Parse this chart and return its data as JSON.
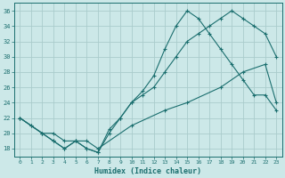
{
  "xlabel": "Humidex (Indice chaleur)",
  "bg_color": "#cce8e8",
  "grid_color": "#aacccc",
  "line_color": "#1a6e6e",
  "xlim": [
    -0.5,
    23.5
  ],
  "ylim": [
    17,
    37
  ],
  "xticks": [
    0,
    1,
    2,
    3,
    4,
    5,
    6,
    7,
    8,
    9,
    10,
    11,
    12,
    13,
    14,
    15,
    16,
    17,
    18,
    19,
    20,
    21,
    22,
    23
  ],
  "yticks": [
    18,
    20,
    22,
    24,
    26,
    28,
    30,
    32,
    34,
    36
  ],
  "line1_x": [
    0,
    1,
    2,
    3,
    4,
    5,
    6,
    7,
    8,
    9,
    10,
    11,
    12,
    13,
    14,
    15,
    16,
    17,
    18,
    19,
    20,
    21,
    22,
    23
  ],
  "line1_y": [
    22,
    21,
    20,
    19,
    18,
    19,
    18,
    17.5,
    20.5,
    22,
    24,
    25.5,
    27.5,
    31,
    34,
    36,
    35,
    33,
    31,
    29,
    27,
    25,
    25,
    23
  ],
  "line2_x": [
    0,
    1,
    2,
    3,
    4,
    5,
    6,
    7,
    8,
    9,
    10,
    11,
    12,
    13,
    14,
    15,
    16,
    17,
    18,
    19,
    20,
    21,
    22,
    23
  ],
  "line2_y": [
    22,
    21,
    20,
    19,
    18,
    19,
    18,
    17.5,
    20,
    22,
    24,
    25,
    26,
    28,
    30,
    32,
    33,
    34,
    35,
    36,
    35,
    34,
    33,
    30
  ],
  "line3_x": [
    0,
    2,
    3,
    4,
    5,
    6,
    7,
    10,
    13,
    15,
    18,
    20,
    22,
    23
  ],
  "line3_y": [
    22,
    20,
    20,
    19,
    19,
    19,
    18,
    21,
    23,
    24,
    26,
    28,
    29,
    24
  ]
}
